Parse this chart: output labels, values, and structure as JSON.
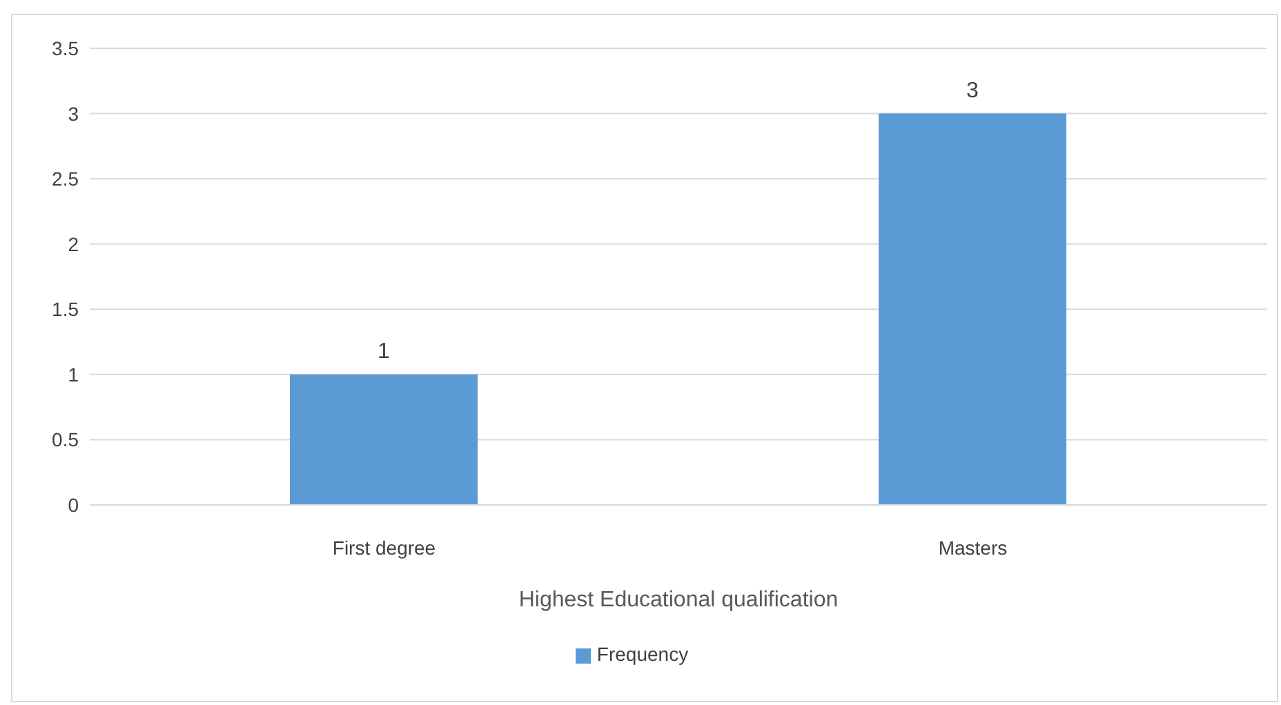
{
  "chart_data": {
    "type": "bar",
    "xlabel": "Highest Educational qualification",
    "categories": [
      "First degree",
      "Masters"
    ],
    "series": [
      {
        "name": "Frequency",
        "color": "#5b9bd5",
        "values": [
          1,
          3
        ]
      }
    ],
    "ylim": [
      0,
      3.5
    ],
    "yticks": [
      0,
      0.5,
      1,
      1.5,
      2,
      2.5,
      3,
      3.5
    ],
    "grid": "y",
    "legend": "bottom",
    "data_labels": true
  }
}
